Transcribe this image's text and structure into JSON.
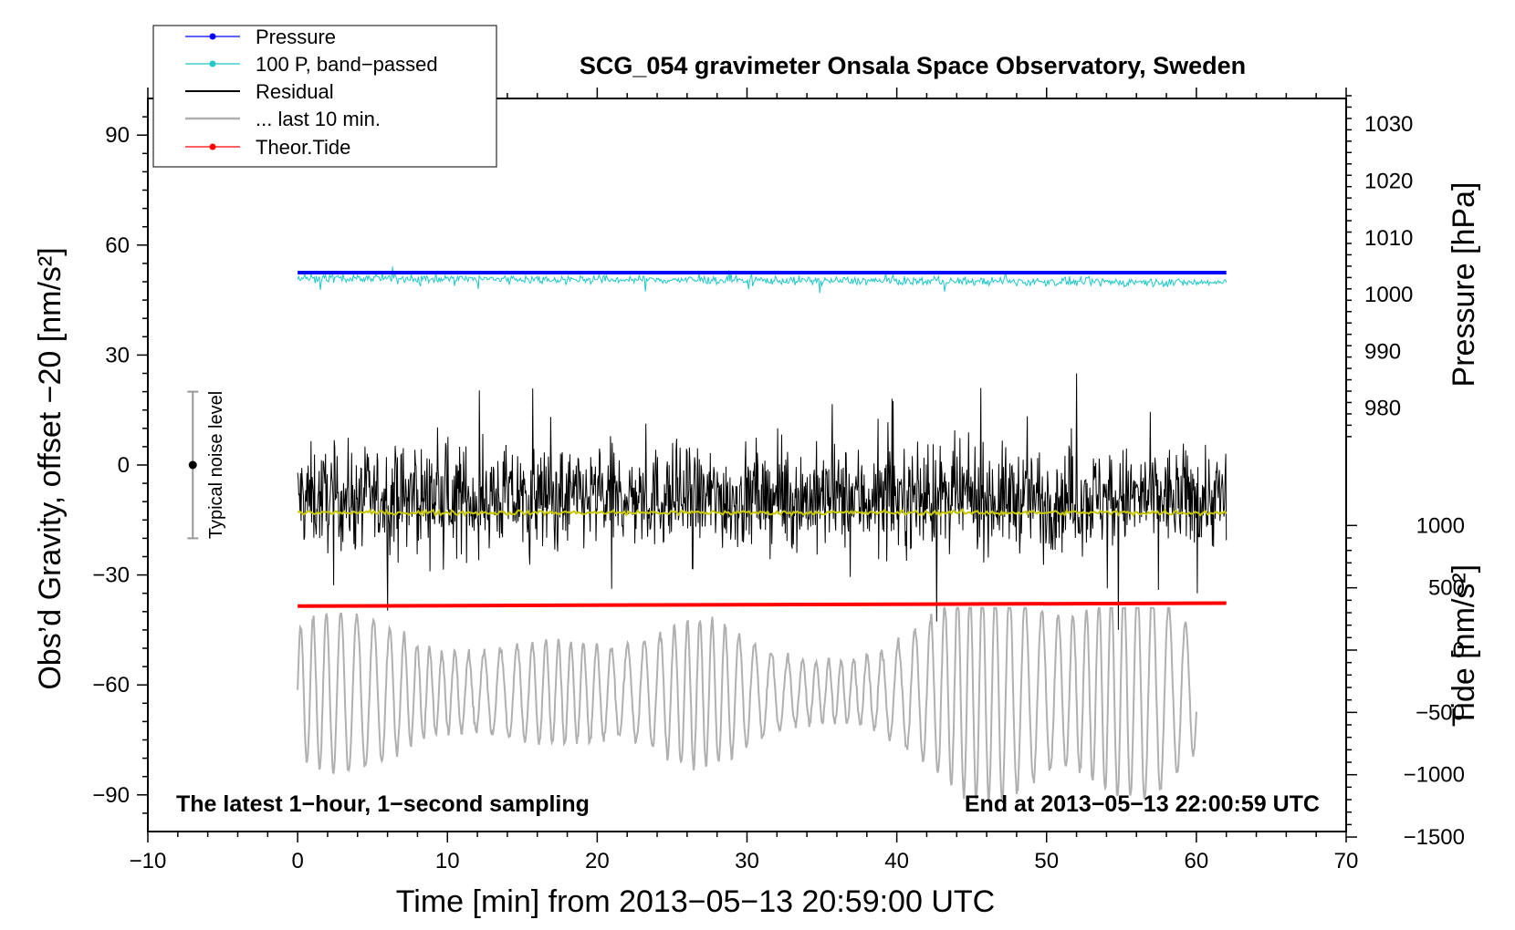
{
  "chart_data": {
    "type": "line",
    "title": "SCG_054 gravimeter Onsala Space Observatory, Sweden",
    "xlabel": "Time [min] from 2013−05−13 20:59:00 UTC",
    "ylabel_left": "Obs’d Gravity, offset −20 [nm/s²]",
    "ylabel_right_pressure": "Pressure [hPa]",
    "ylabel_right_tide": "Tide [nm/s²]",
    "xlim": [
      -10,
      70
    ],
    "ylim": [
      -100,
      100
    ],
    "x_ticks": [
      "−10",
      "0",
      "10",
      "20",
      "30",
      "40",
      "50",
      "60",
      "70"
    ],
    "y_ticks": [
      "90",
      "60",
      "30",
      "0",
      "−30",
      "−60",
      "−90"
    ],
    "pressure_ticks": [
      "1030",
      "1020",
      "1010",
      "1000",
      "990",
      "980"
    ],
    "tide_ticks": [
      "1000",
      "500",
      "0",
      "−500",
      "−1000",
      "−1500"
    ],
    "pressure_axis": {
      "ref_value": 1000,
      "ref_y": 46.5,
      "per_10hpa": 15.5
    },
    "tide_axis": {
      "ref_value": 0,
      "ref_y": -50.5,
      "per_500": 17
    },
    "legend": {
      "placement": "top-left",
      "entries": [
        {
          "label": "Pressure",
          "color": "#0000ff",
          "marker": true
        },
        {
          "label": "100 P, band−passed",
          "color": "#20c8c8",
          "marker": true
        },
        {
          "label": "Residual",
          "color": "#000000",
          "marker": false
        },
        {
          "label": "... last 10 min.",
          "color": "#b0b0b0",
          "marker": false
        },
        {
          "label": "Theor.Tide",
          "color": "#ff0000",
          "marker": true
        }
      ]
    },
    "noise_level": {
      "label": "Typical noise level",
      "x": -7,
      "center": 0,
      "half_range": 20
    },
    "annotations": {
      "bottom_left": "The latest 1−hour, 1−second sampling",
      "bottom_right": "End at 2013−05−13 22:00:59 UTC"
    },
    "series": [
      {
        "name": "Pressure",
        "color": "#0000ff",
        "x_range": [
          0,
          62
        ],
        "level": 52.5
      },
      {
        "name": "100 P, band−passed",
        "color": "#20c8c8",
        "x_range": [
          0,
          62
        ],
        "level": 51
      },
      {
        "name": "Residual",
        "color": "#000000",
        "x_range": [
          0,
          62
        ],
        "level": -9,
        "min": -45,
        "max": 25
      },
      {
        "name": "Residual mean",
        "color": "#c8c800",
        "x_range": [
          0,
          62
        ],
        "level": -13
      },
      {
        "name": "Theor.Tide",
        "color": "#ff0000",
        "x_range": [
          0,
          62
        ],
        "start": -38.5,
        "end": -37.7
      },
      {
        "name": "... last 10 min.",
        "color": "#b0b0b0",
        "x_range": [
          0,
          60
        ],
        "level": -62,
        "min": -96,
        "max": -39
      }
    ]
  }
}
